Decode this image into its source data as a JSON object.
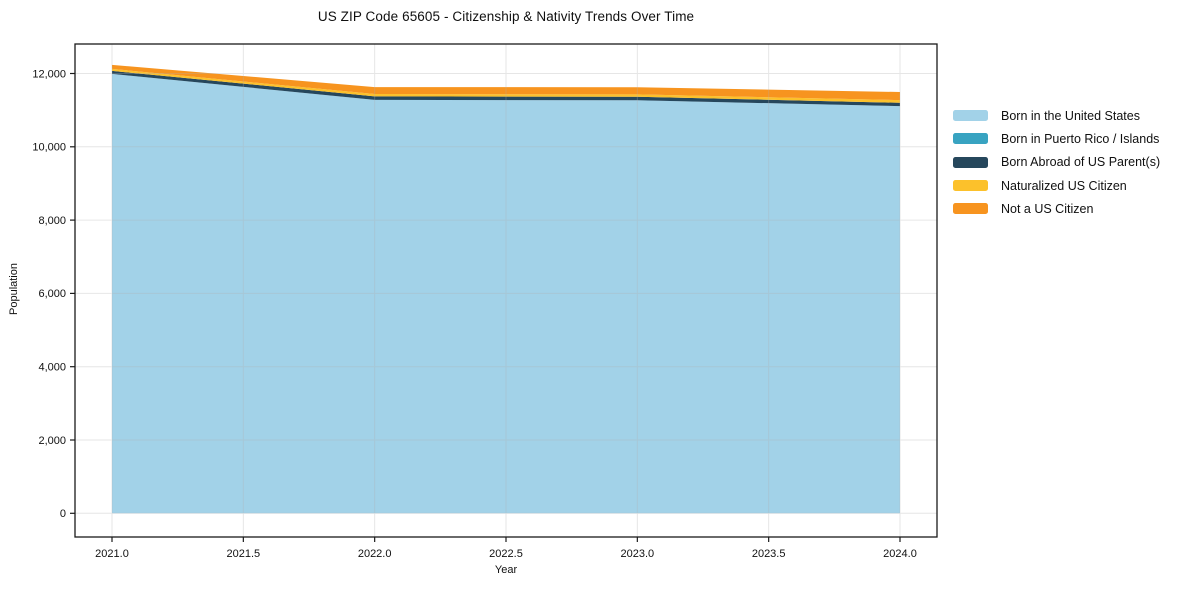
{
  "figure": {
    "title": "US ZIP Code 65605 - Citizenship & Nativity Trends Over Time",
    "background_color": "#ffffff",
    "spine_color": "#1a1a1a",
    "grid_color": "#b0b0b0",
    "text_color": "#101010"
  },
  "chart_data": {
    "type": "area",
    "stacked": true,
    "title": "US ZIP Code 65605 - Citizenship & Nativity Trends Over Time",
    "xlabel": "Year",
    "ylabel": "Population",
    "x": [
      2021,
      2022,
      2023,
      2024
    ],
    "series": [
      {
        "name": "Born in the United States",
        "color": "#a2d2e8",
        "values": [
          11990,
          11280,
          11270,
          11110
        ]
      },
      {
        "name": "Born in Puerto Rico / Islands",
        "color": "#38a3c1",
        "values": [
          0,
          0,
          0,
          0
        ]
      },
      {
        "name": "Born Abroad of US Parent(s)",
        "color": "#26475c",
        "values": [
          80,
          95,
          95,
          90
        ]
      },
      {
        "name": "Naturalized US Citizen",
        "color": "#fcc12b",
        "values": [
          55,
          65,
          65,
          75
        ]
      },
      {
        "name": "Not a US Citizen",
        "color": "#f7941f",
        "values": [
          110,
          190,
          195,
          220
        ]
      }
    ],
    "totals": [
      12235,
      11630,
      11625,
      11495
    ],
    "x_ticks": {
      "values": [
        2021.0,
        2021.5,
        2022.0,
        2022.5,
        2023.0,
        2023.5,
        2024.0
      ],
      "labels": [
        "2021.0",
        "2021.5",
        "2022.0",
        "2022.5",
        "2023.0",
        "2023.5",
        "2024.0"
      ]
    },
    "y_ticks": {
      "values": [
        0,
        2000,
        4000,
        6000,
        8000,
        10000,
        12000
      ],
      "labels": [
        "0",
        "2,000",
        "4,000",
        "6,000",
        "8,000",
        "10,000",
        "12,000"
      ]
    },
    "xlim": [
      2020.86,
      2024.14
    ],
    "ylim": [
      -650,
      12850
    ],
    "grid": true,
    "legend_position": "outside-right"
  },
  "legend": {
    "items": [
      "Born in the United States",
      "Born in Puerto Rico / Islands",
      "Born Abroad of US Parent(s)",
      "Naturalized US Citizen",
      "Not a US Citizen"
    ]
  }
}
